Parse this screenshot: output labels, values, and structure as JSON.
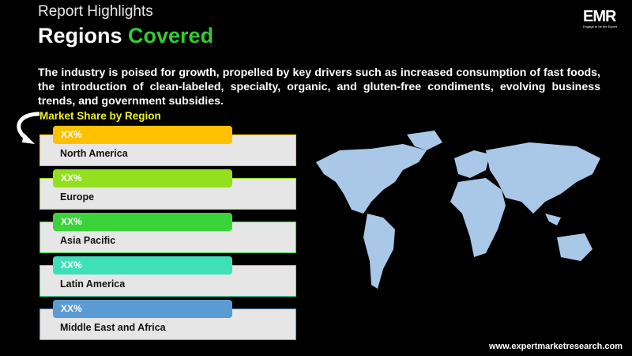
{
  "header": {
    "subtitle": "Report Highlights",
    "title_part1": "Regions",
    "title_part2": "Covered"
  },
  "logo": {
    "text": "EMR",
    "tagline": "Engage to be the Expert"
  },
  "description": "The industry is poised for growth, propelled by key drivers such as increased consumption of fast foods, the introduction of clean-labeled, specialty, organic, and gluten-free condiments, evolving business trends, and government subsidies.",
  "market_share_label": "Market Share by Region",
  "regions": [
    {
      "name": "North America",
      "value": "XX%",
      "color": "#ffc000"
    },
    {
      "name": "Europe",
      "value": "XX%",
      "color": "#92e01e"
    },
    {
      "name": "Asia Pacific",
      "value": "XX%",
      "color": "#3ad43a"
    },
    {
      "name": "Latin America",
      "value": "XX%",
      "color": "#3ee0b8"
    },
    {
      "name": "Middle East and Africa",
      "value": "XX%",
      "color": "#5b9bd5"
    }
  ],
  "map_color": "#a9c8e8",
  "website": "www.expertmarketresearch.com"
}
